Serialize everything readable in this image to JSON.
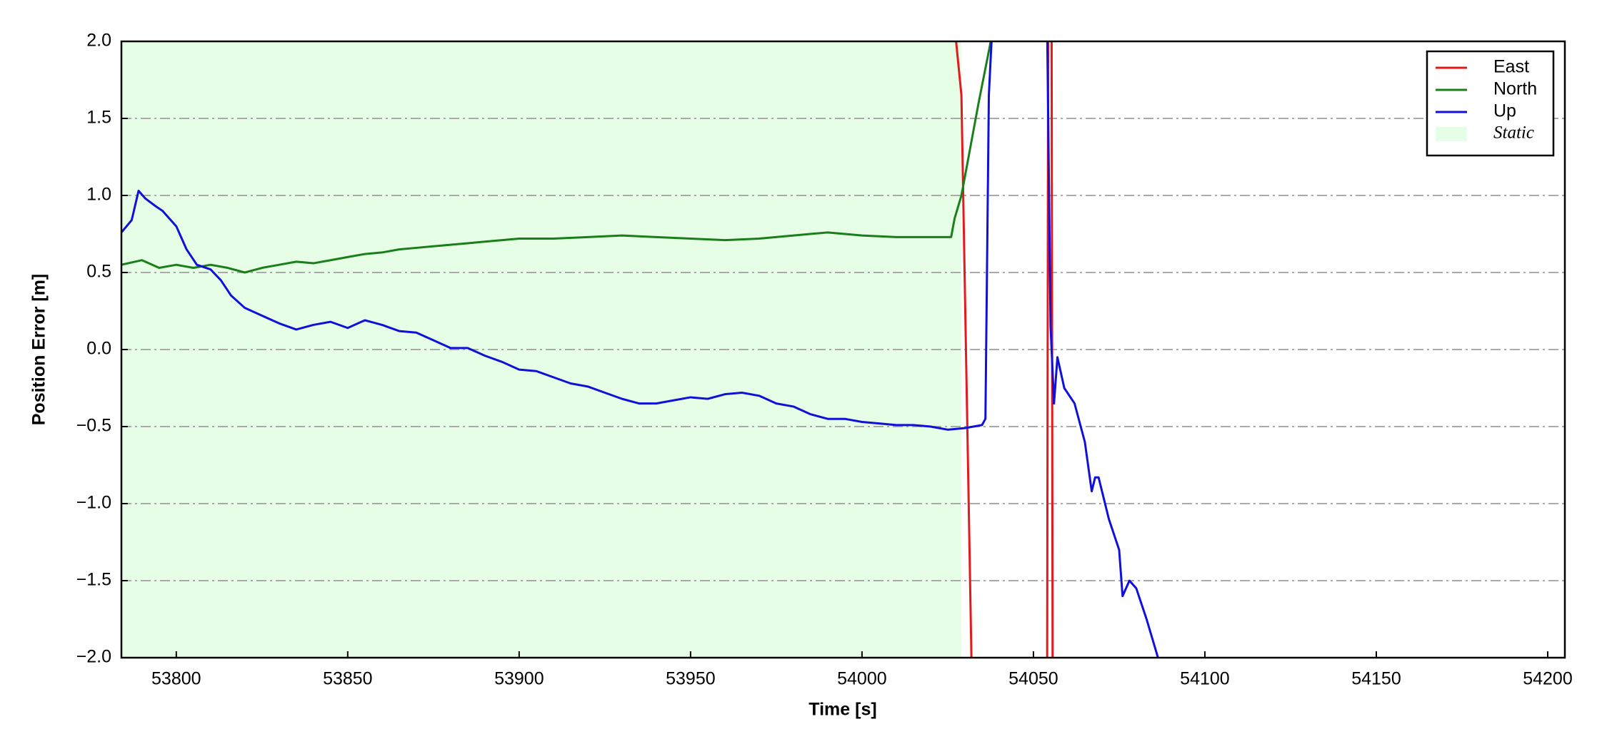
{
  "chart_data": {
    "type": "line",
    "xlabel": "Time [s]",
    "ylabel": "Position Error [m]",
    "xlim": [
      53784,
      54205
    ],
    "ylim": [
      -2,
      2
    ],
    "xticks": [
      53800,
      53850,
      53900,
      53950,
      54000,
      54050,
      54100,
      54150,
      54200
    ],
    "yticks": [
      {
        "value": -2,
        "label": "−2.0"
      },
      {
        "value": -1.5,
        "label": "−1.5"
      },
      {
        "value": -1,
        "label": "−1.0"
      },
      {
        "value": -0.5,
        "label": "−0.5"
      },
      {
        "value": 0,
        "label": "0.0"
      },
      0.5,
      {
        "value": 1,
        "label": "1.0"
      },
      1.5,
      {
        "value": 2,
        "label": "2.0"
      }
    ],
    "grid": true,
    "legend": "upper right",
    "shaded": {
      "name": "Static",
      "color": "#e6fde6",
      "span": [
        53784,
        54029
      ]
    },
    "series": [
      {
        "name": "East",
        "color": "#e31a1c",
        "x": [
          54027,
          54029,
          54032,
          54054,
          54054.3,
          54055.3,
          54055.6
        ],
        "values": [
          2.1,
          1.65,
          -2.1,
          -2.1,
          2.1,
          2.1,
          -2.1
        ]
      },
      {
        "name": "North",
        "color": "#1a7f1a",
        "x": [
          53784,
          53790,
          53795,
          53800,
          53805,
          53810,
          53815,
          53820,
          53825,
          53830,
          53835,
          53840,
          53845,
          53850,
          53855,
          53860,
          53865,
          53870,
          53875,
          53880,
          53885,
          53890,
          53895,
          53900,
          53910,
          53920,
          53930,
          53940,
          53950,
          53960,
          53970,
          53980,
          53990,
          54000,
          54010,
          54020,
          54026,
          54027,
          54029,
          54034,
          54038
        ],
        "values": [
          0.55,
          0.58,
          0.53,
          0.55,
          0.53,
          0.55,
          0.53,
          0.5,
          0.53,
          0.55,
          0.57,
          0.56,
          0.58,
          0.6,
          0.62,
          0.63,
          0.65,
          0.66,
          0.67,
          0.68,
          0.69,
          0.7,
          0.71,
          0.72,
          0.72,
          0.73,
          0.74,
          0.73,
          0.72,
          0.71,
          0.72,
          0.74,
          0.76,
          0.74,
          0.73,
          0.73,
          0.73,
          0.85,
          1.0,
          1.6,
          2.05
        ]
      },
      {
        "name": "Up",
        "color": "#1010d8",
        "x": [
          53784,
          53787,
          53789,
          53791,
          53794,
          53796,
          53800,
          53803,
          53806,
          53810,
          53813,
          53816,
          53820,
          53825,
          53830,
          53835,
          53840,
          53845,
          53850,
          53855,
          53860,
          53865,
          53870,
          53875,
          53880,
          53885,
          53890,
          53895,
          53900,
          53905,
          53910,
          53915,
          53920,
          53925,
          53930,
          53935,
          53940,
          53945,
          53950,
          53955,
          53960,
          53965,
          53970,
          53975,
          53980,
          53985,
          53990,
          53995,
          54000,
          54005,
          54010,
          54015,
          54020,
          54025,
          54030,
          54035,
          54036,
          54037,
          54038,
          54054,
          54055,
          54056,
          54057,
          54059,
          54062,
          54065,
          54067,
          54068,
          54069,
          54072,
          54075,
          54076,
          54078,
          54080,
          54083,
          54087
        ],
        "values": [
          0.76,
          0.84,
          1.03,
          0.98,
          0.93,
          0.9,
          0.8,
          0.65,
          0.55,
          0.52,
          0.45,
          0.35,
          0.27,
          0.22,
          0.17,
          0.13,
          0.16,
          0.18,
          0.14,
          0.19,
          0.16,
          0.12,
          0.11,
          0.06,
          0.01,
          0.01,
          -0.04,
          -0.08,
          -0.13,
          -0.14,
          -0.18,
          -0.22,
          -0.24,
          -0.28,
          -0.32,
          -0.35,
          -0.35,
          -0.33,
          -0.31,
          -0.32,
          -0.29,
          -0.28,
          -0.3,
          -0.35,
          -0.37,
          -0.42,
          -0.45,
          -0.45,
          -0.47,
          -0.48,
          -0.49,
          -0.49,
          -0.5,
          -0.52,
          -0.51,
          -0.49,
          -0.45,
          1.65,
          2.1,
          2.1,
          0.15,
          -0.35,
          -0.05,
          -0.25,
          -0.35,
          -0.6,
          -0.92,
          -0.83,
          -0.83,
          -1.1,
          -1.3,
          -1.6,
          -1.5,
          -1.55,
          -1.75,
          -2.05
        ]
      }
    ]
  }
}
